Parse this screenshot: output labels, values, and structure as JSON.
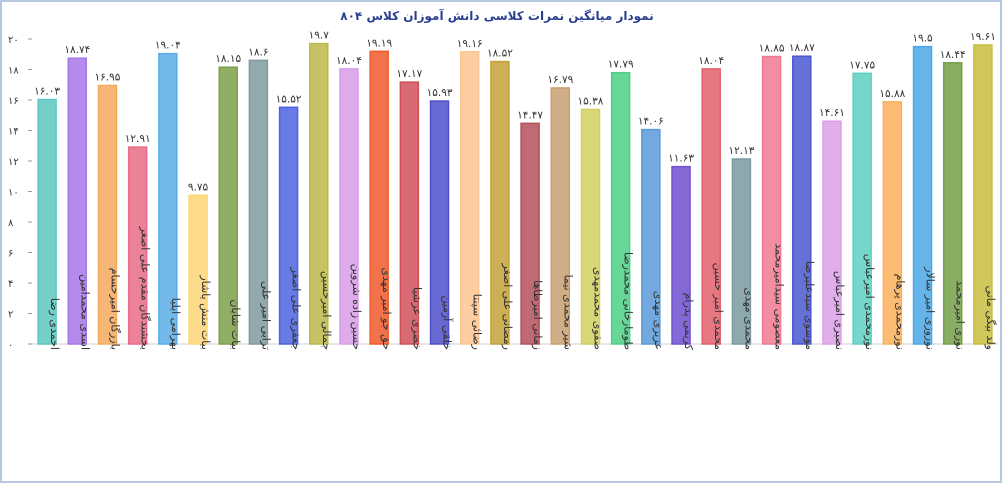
{
  "chart_data": {
    "type": "bar",
    "title": "نمودار میانگین نمرات کلاسی دانش آموزان کلاس ۸۰۴",
    "ylim": [
      0,
      20
    ],
    "yticks": [
      "۰",
      "۲",
      "۴",
      "۶",
      "۸",
      "۱۰",
      "۱۲",
      "۱۴",
      "۱۶",
      "۱۸",
      "۲۰"
    ],
    "grid": false,
    "categories": [
      "احمدی رضا",
      "اسدی محمدامین",
      "بازرگان امیرحسام",
      "بخشندگان مقدم علی اصغر",
      "بهرامی ایلیا",
      "بیات منش یاشار",
      "بیات شایان",
      "ترابی امیر علی",
      "جعفری علی اصغر",
      "جمالی امیرحسین",
      "حسین زاده شروین",
      "حق جو امیر مهدی",
      "خضری عرشیا",
      "خلقی آرمین",
      "رضائی سپنتا",
      "رمضانی علی اصغر",
      "زمانی امیرطاها",
      "شیر محمدی نیما",
      "صفوی محمدمهدی",
      "طومارخانی محمدرضا",
      "عزیزی مهدی",
      "کریمی پدرام",
      "محمدی امیر حسین",
      "محمدی مهدی",
      "معصومی سیدامیرمحمد",
      "موسوی سیدعلیرضا",
      "نصیری امیرعباس",
      "نورمحمدی امیرعباس",
      "نورمحمدی پرهام",
      "نوروزی امیر سالار",
      "نوری امیرمحمد",
      "ولد بیگی مانی"
    ],
    "values": [
      16.03,
      18.74,
      16.95,
      12.91,
      19.04,
      9.75,
      18.15,
      18.6,
      15.52,
      19.7,
      18.04,
      19.19,
      17.17,
      15.93,
      19.16,
      18.52,
      14.47,
      16.79,
      15.38,
      17.79,
      14.06,
      11.63,
      18.04,
      12.13,
      18.85,
      18.87,
      14.61,
      17.75,
      15.88,
      19.5,
      18.44,
      19.61
    ],
    "value_labels": [
      "۱۶.۰۳",
      "۱۸.۷۴",
      "۱۶.۹۵",
      "۱۲.۹۱",
      "۱۹.۰۴",
      "۹.۷۵",
      "۱۸.۱۵",
      "۱۸.۶",
      "۱۵.۵۲",
      "۱۹.۷",
      "۱۸.۰۴",
      "۱۹.۱۹",
      "۱۷.۱۷",
      "۱۵.۹۳",
      "۱۹.۱۶",
      "۱۸.۵۲",
      "۱۴.۴۷",
      "۱۶.۷۹",
      "۱۵.۳۸",
      "۱۷.۷۹",
      "۱۴.۰۶",
      "۱۱.۶۳",
      "۱۸.۰۴",
      "۱۲.۱۳",
      "۱۸.۸۵",
      "۱۸.۸۷",
      "۱۴.۶۱",
      "۱۷.۷۵",
      "۱۵.۸۸",
      "۱۹.۵",
      "۱۸.۴۴",
      "۱۹.۶۱"
    ],
    "colors": [
      "#5cc7c0",
      "#a777e8",
      "#f5aa5e",
      "#e86c86",
      "#5aaee8",
      "#fcd676",
      "#7ea04a",
      "#7f9aa0",
      "#4c63e0",
      "#bcb84a",
      "#d89ee8",
      "#f05a2c",
      "#d0505a",
      "#4f4fcc",
      "#fcc690",
      "#c4a238",
      "#b5505a",
      "#c8a070",
      "#d0d060",
      "#4cd085",
      "#5a9ad8",
      "#7050d0",
      "#e0606a",
      "#7a9aa0",
      "#f07a90",
      "#4a58d0",
      "#dca0e8",
      "#5cd0c0",
      "#fcb05c",
      "#4aa8e8",
      "#74a048",
      "#c8be40"
    ]
  }
}
